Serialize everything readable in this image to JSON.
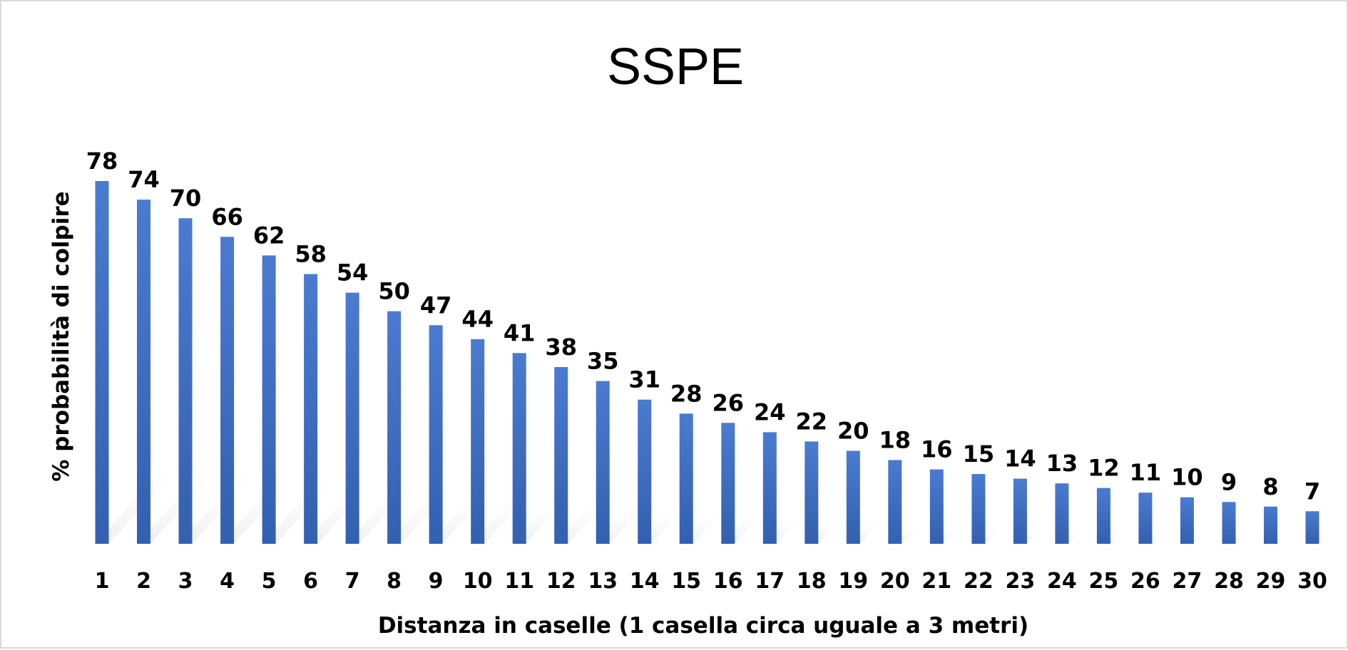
{
  "chart_data": {
    "type": "bar",
    "title": "SSPE",
    "xlabel": "Distanza in caselle (1 casella circa uguale a 3 metri)",
    "ylabel": "% probabilità di colpire",
    "categories": [
      "1",
      "2",
      "3",
      "4",
      "5",
      "6",
      "7",
      "8",
      "9",
      "10",
      "11",
      "12",
      "13",
      "14",
      "15",
      "16",
      "17",
      "18",
      "19",
      "20",
      "21",
      "22",
      "23",
      "24",
      "25",
      "26",
      "27",
      "28",
      "29",
      "30"
    ],
    "values": [
      78,
      74,
      70,
      66,
      62,
      58,
      54,
      50,
      47,
      44,
      41,
      38,
      35,
      31,
      28,
      26,
      24,
      22,
      20,
      18,
      16,
      15,
      14,
      13,
      12,
      11,
      10,
      9,
      8,
      7
    ],
    "data_labels": [
      "78",
      "74",
      "70",
      "66",
      "62",
      "58",
      "54",
      "50",
      "47",
      "44",
      "41",
      "38",
      "35",
      "31",
      "28",
      "26",
      "24",
      "22",
      "20",
      "18",
      "16",
      "15",
      "14",
      "13",
      "12",
      "11",
      "10",
      "9",
      "8",
      "7"
    ],
    "ylim": [
      0,
      78
    ],
    "grid": false,
    "legend": "none",
    "bar_color": "#4472c4"
  }
}
